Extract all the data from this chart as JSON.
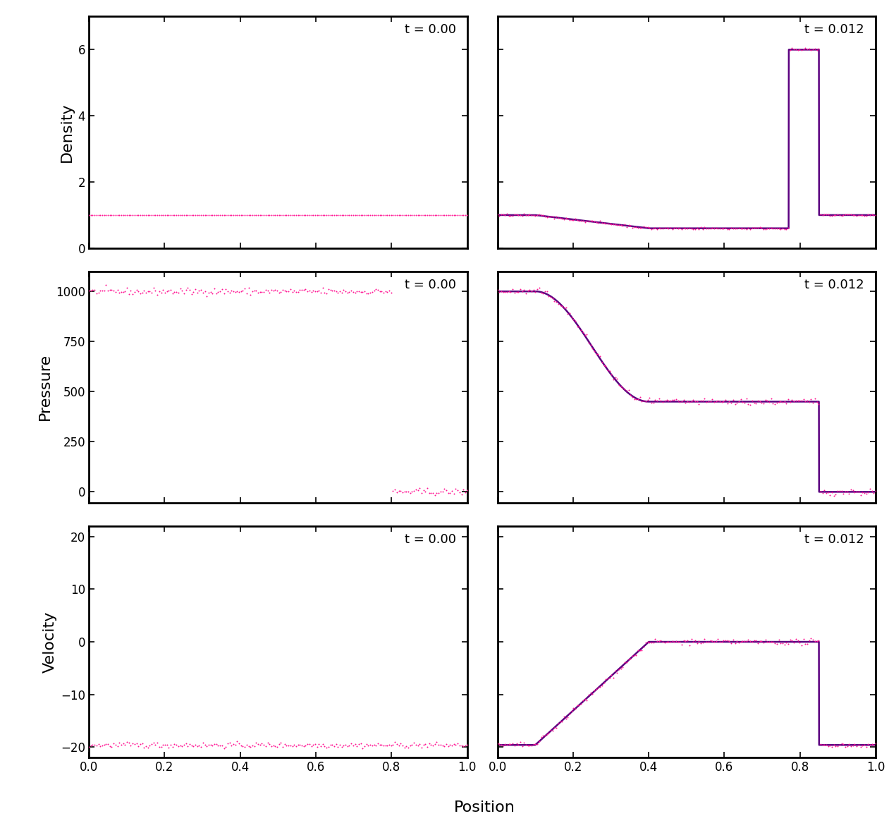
{
  "t_labels": [
    "t = 0.00",
    "t = 0.012"
  ],
  "dot_color": "#FF1493",
  "line_color": "#5B0080",
  "dot_size": 8,
  "dot_marker": ".",
  "background_color": "white",
  "spine_color": "black",
  "spine_linewidth": 2.0,
  "tick_color": "black",
  "label_color": "black",
  "fig_bg": "white",
  "ylabel_density": "Density",
  "ylabel_pressure": "Pressure",
  "ylabel_velocity": "Velocity",
  "xlabel": "Position",
  "density_ylim": [
    0,
    7
  ],
  "pressure_ylim": [
    -55,
    1100
  ],
  "velocity_ylim": [
    -22,
    22
  ],
  "xlim": [
    0.0,
    1.0
  ],
  "n_points": 200,
  "n_ref": 2000,
  "noise_rho": 0.018,
  "noise_p": 8.0,
  "noise_v": 0.25,
  "annotation_fontsize": 13,
  "label_fontsize": 16,
  "tick_fontsize": 12,
  "density_yticks": [
    0,
    2,
    4,
    6
  ],
  "pressure_yticks": [
    0,
    250,
    500,
    750,
    1000
  ],
  "velocity_yticks": [
    -20,
    -10,
    0,
    10,
    20
  ],
  "xticks": [
    0.0,
    0.2,
    0.4,
    0.6,
    0.8,
    1.0
  ]
}
